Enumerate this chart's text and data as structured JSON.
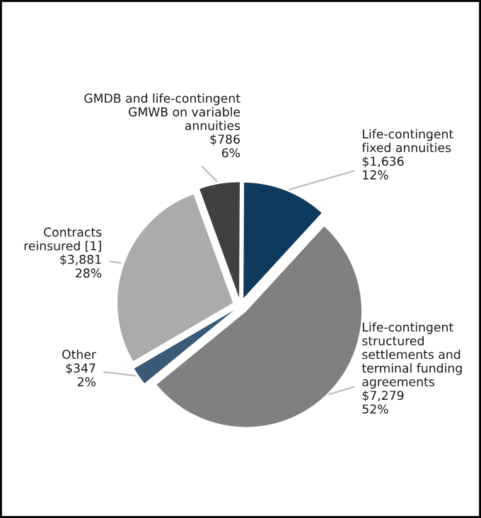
{
  "chart_data": {
    "type": "pie",
    "categories": [
      "GMDB and life-contingent\nGMWB on variable\nannuities",
      "Life-contingent\nfixed annuities",
      "Life-contingent\nstructured\nsettlements and\nterminal funding\nagreements",
      "Other",
      "Contracts\nreinsured [1]"
    ],
    "values": [
      786,
      1636,
      7279,
      347,
      3881
    ],
    "value_labels": [
      "$786\n6%",
      "$1,636\n12%",
      "$7,279\n52%",
      "$347\n2%",
      "$3,881\n28%"
    ],
    "colors": [
      "#404040",
      "#0e3a5e",
      "#808080",
      "#3a5a78",
      "#ababab"
    ],
    "legend": false
  }
}
